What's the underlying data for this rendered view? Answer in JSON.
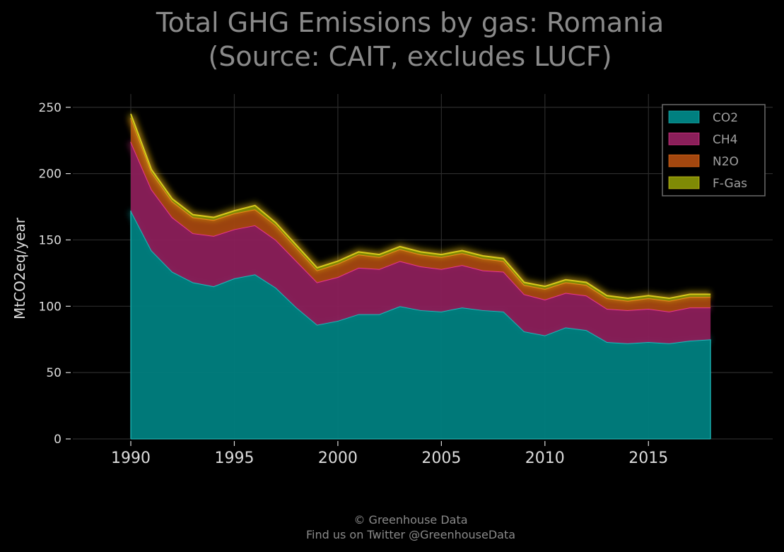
{
  "chart_data": {
    "type": "area",
    "stacked": true,
    "title_line1": "Total GHG Emissions by gas: Romania",
    "title_line2": "(Source: CAIT, excludes LUCF)",
    "xlabel": "",
    "ylabel": "MtCO2eq/year",
    "xlim": [
      1987.2,
      2021.0
    ],
    "ylim": [
      0,
      260
    ],
    "xticks": [
      1990,
      1995,
      2000,
      2005,
      2010,
      2015
    ],
    "yticks": [
      0,
      50,
      100,
      150,
      200,
      250
    ],
    "grid": true,
    "legend_position": "top-right",
    "x": [
      1990,
      1991,
      1992,
      1993,
      1994,
      1995,
      1996,
      1997,
      1998,
      1999,
      2000,
      2001,
      2002,
      2003,
      2004,
      2005,
      2006,
      2007,
      2008,
      2009,
      2010,
      2011,
      2012,
      2013,
      2014,
      2015,
      2016,
      2017,
      2018
    ],
    "series": [
      {
        "name": "CO2",
        "color": "#008080",
        "glow": "#22c8c8",
        "values": [
          172,
          142,
          126,
          118,
          115,
          121,
          124,
          114,
          99,
          86,
          89,
          94,
          94,
          100,
          97,
          96,
          99,
          97,
          96,
          81,
          78,
          84,
          82,
          73,
          72,
          73,
          72,
          74,
          75
        ]
      },
      {
        "name": "CH4",
        "color": "#8b1f5a",
        "glow": "#ff3c9e",
        "values": [
          52,
          46,
          41,
          37,
          38,
          37,
          37,
          36,
          35,
          32,
          33,
          35,
          34,
          34,
          33,
          32,
          32,
          30,
          30,
          28,
          27,
          26,
          26,
          25,
          25,
          25,
          24,
          25,
          24
        ]
      },
      {
        "name": "N2O",
        "color": "#a3470f",
        "glow": "#ff7a1a",
        "values": [
          18,
          13,
          12,
          12,
          12,
          12,
          12,
          11,
          10,
          9,
          10,
          10,
          9,
          9,
          9,
          9,
          9,
          9,
          8,
          7,
          8,
          8,
          8,
          8,
          7,
          8,
          8,
          8,
          8
        ]
      },
      {
        "name": "F-Gas",
        "color": "#7f8a05",
        "glow": "#f0e020",
        "values": [
          3,
          2,
          2,
          2,
          2,
          2,
          3,
          2,
          2,
          2,
          2,
          2,
          2,
          2,
          2,
          2,
          2,
          2,
          2,
          2,
          2,
          2,
          2,
          2,
          2,
          2,
          2,
          2,
          2
        ]
      }
    ]
  },
  "footer": {
    "line1": "© Greenhouse Data",
    "line2": "Find us on Twitter @GreenhouseData"
  }
}
